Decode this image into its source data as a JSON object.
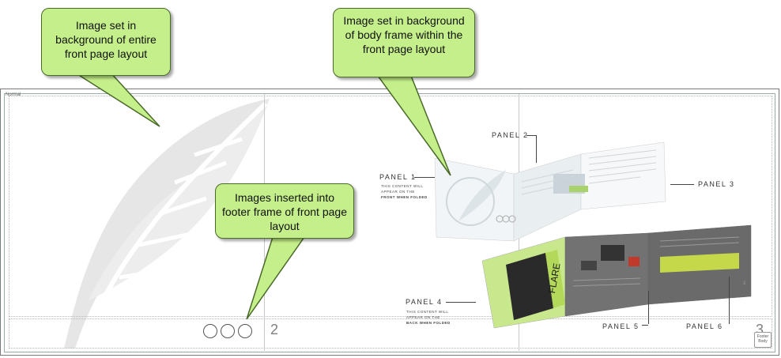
{
  "callouts": {
    "entire_bg": "Image set in background of entire front page layout",
    "body_bg": "Image set in background of body frame within the front page layout",
    "footer": "Images inserted into footer frame of front page layout"
  },
  "canvas": {
    "style_label": "Normal",
    "page_left": "2",
    "page_right": "3",
    "footer_tag": "Footer Body"
  },
  "brochure": {
    "panel1": {
      "label": "PANEL 1",
      "sub": [
        "THIS CONTENT WILL",
        "APPEAR ON THE",
        "FRONT WHEN FOLDED"
      ]
    },
    "panel2": {
      "label": "PANEL 2"
    },
    "panel3": {
      "label": "PANEL 3"
    },
    "panel4": {
      "label": "PANEL 4",
      "sub": [
        "THIS CONTENT WILL",
        "APPEAR ON THE",
        "BACK WHEN FOLDED"
      ]
    },
    "panel5": {
      "label": "PANEL 5"
    },
    "panel6": {
      "label": "PANEL 6"
    },
    "product": "FLARE",
    "inner_page_num": "3"
  },
  "colors": {
    "callout_fill": "#c4ef8a",
    "callout_border": "#4a6a2a",
    "lime": "#c9e88e",
    "dark_panel": "#6e6e6e"
  }
}
